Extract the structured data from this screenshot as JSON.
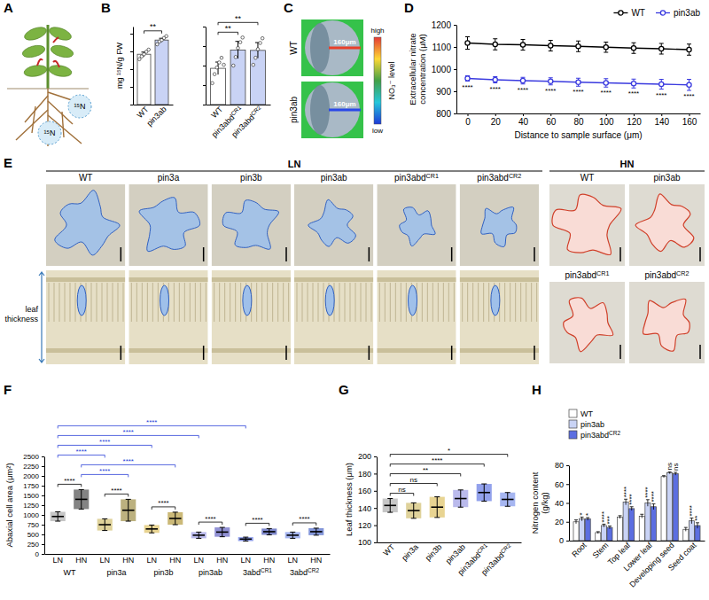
{
  "chart_data": [
    {
      "type": "image",
      "panel": "A",
      "annotations": [
        "¹⁵N",
        "¹⁵N"
      ]
    },
    {
      "type": "bar",
      "panel": "B",
      "ylabel": "mg ¹⁵N/g FW",
      "categories": [
        "WT",
        "pin3ab"
      ],
      "values": [
        1.42,
        1.82
      ],
      "errors": [
        0.06,
        0.05
      ],
      "points": [
        [
          1.28,
          1.36,
          1.42,
          1.49,
          1.55
        ],
        [
          1.7,
          1.78,
          1.82,
          1.88,
          1.93
        ]
      ],
      "colors": [
        "#ffffff",
        "#c9d3f5"
      ],
      "ylim": [
        0,
        2.2
      ],
      "yticks": [
        0,
        0.5,
        1,
        1.5,
        2
      ],
      "tick_labels": "x",
      "brackets": [
        {
          "pair": [
            0,
            1
          ],
          "label": "**"
        }
      ]
    },
    {
      "type": "bar",
      "categories": [
        "WT",
        "pin3abdCR1",
        "pin3abdCR2"
      ],
      "values": [
        0.93,
        1.4,
        1.39
      ],
      "errors": [
        0.16,
        0.22,
        0.2
      ],
      "points": [
        [
          0.55,
          0.78,
          0.95,
          1.08,
          1.2,
          1.02
        ],
        [
          1.0,
          1.22,
          1.45,
          1.6,
          1.72
        ],
        [
          1.02,
          1.2,
          1.42,
          1.58,
          1.7
        ]
      ],
      "colors": [
        "#ffffff",
        "#c9d3f5",
        "#c9d3f5"
      ],
      "ylim": [
        0,
        2
      ],
      "yticks": [
        0,
        0.5,
        1,
        1.5,
        2
      ],
      "tick_labels": "x",
      "brackets": [
        {
          "pair": [
            0,
            1
          ],
          "label": "**"
        },
        {
          "pair": [
            0,
            2
          ],
          "label": "**"
        }
      ]
    },
    {
      "type": "image",
      "panel": "C",
      "labels": [
        "WT",
        "pin3ab"
      ],
      "annotations": [
        "160μm",
        "160μm"
      ],
      "colorbar": {
        "title": "NO₃⁻ level",
        "labels": [
          "high",
          "low"
        ]
      }
    },
    {
      "type": "line",
      "panel": "D",
      "xlabel": "Distance to sample surface (μm)",
      "ylabel": "Extracellular nitrate concentration (μM)",
      "x": [
        0,
        20,
        40,
        60,
        80,
        100,
        120,
        140,
        160
      ],
      "xlim": [
        -8,
        168
      ],
      "xticks": [
        0,
        20,
        40,
        60,
        80,
        100,
        120,
        140,
        160
      ],
      "ylim": [
        800,
        1200
      ],
      "yticks": [
        800,
        900,
        1000,
        1100,
        1200
      ],
      "legend": "top-right",
      "series": [
        {
          "name": "WT",
          "color": "#000000",
          "marker": "circle",
          "values": [
            1118,
            1112,
            1110,
            1106,
            1103,
            1099,
            1095,
            1092,
            1088
          ],
          "errors": [
            28,
            25,
            24,
            24,
            24,
            23,
            24,
            24,
            25
          ]
        },
        {
          "name": "pin3ab",
          "color": "#3a3adf",
          "marker": "circle",
          "values": [
            958,
            952,
            948,
            945,
            941,
            938,
            935,
            932,
            929
          ],
          "errors": [
            12,
            14,
            15,
            16,
            18,
            19,
            20,
            22,
            25
          ]
        }
      ],
      "significance": [
        "****",
        "****",
        "****",
        "****",
        "****",
        "****",
        "****",
        "****",
        "****"
      ]
    },
    {
      "type": "image",
      "panel": "E",
      "headers": [
        "LN",
        "HN"
      ],
      "labels": [
        "WT",
        "pin3a",
        "pin3b",
        "pin3ab",
        "pin3abdCR1",
        "pin3abdCR2"
      ],
      "hn_labels": [
        "WT",
        "pin3ab",
        "pin3abdCR1",
        "pin3abdCR2"
      ],
      "annotations": [
        "leaf thickness"
      ]
    },
    {
      "type": "dot",
      "panel": "F",
      "ylabel": "Abaxial cell area (μm²)",
      "categories": [
        "LN",
        "HN",
        "LN",
        "HN",
        "LN",
        "HN",
        "LN",
        "HN",
        "LN",
        "HN",
        "LN",
        "HN"
      ],
      "groups": [
        "WT",
        "pin3a",
        "pin3b",
        "pin3ab",
        "3abdCR1",
        "3abdCR2"
      ],
      "values": [
        960,
        1400,
        750,
        1120,
        640,
        910,
        480,
        560,
        380,
        570,
        480,
        570
      ],
      "errors": [
        120,
        250,
        150,
        280,
        100,
        160,
        80,
        120,
        50,
        80,
        80,
        90
      ],
      "colors": [
        "#a0a0a0",
        "#303030",
        "#c9b458",
        "#8f7d2a",
        "#d8b84a",
        "#a88a1e",
        "#8c8ce0",
        "#4848b8",
        "#4a62e0",
        "#2838a8",
        "#6a86e8",
        "#3050c0"
      ],
      "ylim": [
        0,
        2500
      ],
      "yticks": [
        0,
        250,
        500,
        750,
        1000,
        1250,
        1500,
        1750,
        2000,
        2250,
        2500
      ],
      "brackets": [
        {
          "pair": [
            0,
            1
          ],
          "label": "****"
        },
        {
          "pair": [
            2,
            3
          ],
          "label": "****"
        },
        {
          "pair": [
            4,
            5
          ],
          "label": "****"
        },
        {
          "pair": [
            6,
            7
          ],
          "label": "****"
        },
        {
          "pair": [
            8,
            9
          ],
          "label": "****"
        },
        {
          "pair": [
            10,
            11
          ],
          "label": "****"
        },
        {
          "pair": [
            1,
            3
          ],
          "label": "****",
          "color": "#2a3fd8"
        },
        {
          "pair": [
            1,
            5
          ],
          "label": "****",
          "color": "#2a3fd8"
        },
        {
          "pair": [
            0,
            2
          ],
          "label": "****",
          "color": "#2a3fd8"
        },
        {
          "pair": [
            0,
            4
          ],
          "label": "****",
          "color": "#2a3fd8"
        },
        {
          "pair": [
            0,
            6
          ],
          "label": "****",
          "color": "#2a3fd8"
        },
        {
          "pair": [
            0,
            8
          ],
          "label": "****",
          "color": "#2a3fd8"
        }
      ]
    },
    {
      "type": "dot",
      "panel": "G",
      "ylabel": "Leaf thickness (μm)",
      "categories": [
        "WT",
        "pin3a",
        "pin3b",
        "pin3ab",
        "pin3abdCR1",
        "pin3abdCR2"
      ],
      "values": [
        143,
        137,
        141,
        151,
        158,
        150
      ],
      "errors": [
        8,
        9,
        12,
        10,
        10,
        8
      ],
      "colors": [
        "#a0a0a0",
        "#c9b458",
        "#d8b84a",
        "#8c8ce0",
        "#4a62e0",
        "#6a86e8"
      ],
      "ylim": [
        100,
        200
      ],
      "yticks": [
        100,
        120,
        140,
        160,
        180,
        200
      ],
      "brackets": [
        {
          "pair": [
            0,
            1
          ],
          "label": "ns"
        },
        {
          "pair": [
            0,
            2
          ],
          "label": "ns"
        },
        {
          "pair": [
            0,
            3
          ],
          "label": "**"
        },
        {
          "pair": [
            0,
            4
          ],
          "label": "****"
        },
        {
          "pair": [
            0,
            5
          ],
          "label": "*"
        }
      ]
    },
    {
      "type": "bar",
      "panel": "H",
      "ylabel": "Nitrogen content (g/kg)",
      "categories": [
        "Root",
        "Stem",
        "Top leaf",
        "Lower leaf",
        "Developing seed",
        "Seed coat"
      ],
      "ylim": [
        0,
        80
      ],
      "yticks": [
        0,
        20,
        40,
        60,
        80
      ],
      "legend": "top-left",
      "series": [
        {
          "name": "WT",
          "color": "#ffffff",
          "values": [
            20,
            8.5,
            25,
            26,
            68,
            12
          ],
          "errors": [
            2,
            1,
            1.5,
            2,
            1,
            2
          ]
        },
        {
          "name": "pin3ab",
          "color": "#c9d3f5",
          "values": [
            23,
            16,
            41,
            40,
            72,
            21
          ],
          "errors": [
            2,
            1.5,
            3,
            3.5,
            1,
            3
          ],
          "significance": [
            "*",
            "****",
            "****",
            "****",
            "ns",
            "****"
          ]
        },
        {
          "name": "pin3abdCR2",
          "color": "#5b6ee1",
          "values": [
            23,
            14,
            34,
            36,
            71,
            16
          ],
          "errors": [
            1.5,
            1.5,
            2,
            3,
            1.5,
            3
          ],
          "significance": [
            "*",
            "***",
            "****",
            "****",
            "ns",
            "**"
          ]
        }
      ]
    }
  ]
}
